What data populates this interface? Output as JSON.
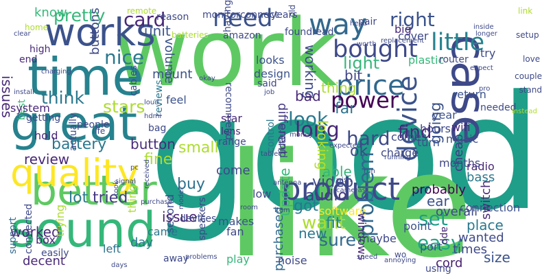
{
  "title": "",
  "words": [
    {
      "text": "good",
      "color": "#1f9e89"
    },
    {
      "text": "work",
      "color": "#5ec962"
    },
    {
      "text": "like",
      "color": "#5ec962"
    },
    {
      "text": "time",
      "color": "#26828e"
    },
    {
      "text": "works",
      "color": "#3b528b"
    },
    {
      "text": "great",
      "color": "#26828e"
    },
    {
      "text": "sound",
      "color": "#35b779"
    },
    {
      "text": "better",
      "color": "#5ec962"
    },
    {
      "text": "quality",
      "color": "#fde725"
    },
    {
      "text": "product",
      "color": "#3e4989"
    },
    {
      "text": "case",
      "color": "#3e4989"
    },
    {
      "text": "device",
      "color": "#3b528b"
    },
    {
      "text": "way",
      "color": "#31688e"
    },
    {
      "text": "need",
      "color": "#3b528b"
    },
    {
      "text": "little",
      "color": "#26828e"
    },
    {
      "text": "right",
      "color": "#3b528b"
    },
    {
      "text": "bought",
      "color": "#3e4989"
    },
    {
      "text": "price",
      "color": "#31688e"
    },
    {
      "text": "power",
      "color": "#440154"
    },
    {
      "text": "pretty",
      "color": "#35b779"
    },
    {
      "text": "card",
      "color": "#482878"
    },
    {
      "text": "unit",
      "color": "#3b528b"
    },
    {
      "text": "nice",
      "color": "#2a788e"
    },
    {
      "text": "think",
      "color": "#2a788e"
    },
    {
      "text": "stars",
      "color": "#addc30"
    },
    {
      "text": "battery",
      "color": "#2a788e"
    },
    {
      "text": "button",
      "color": "#472d7b"
    },
    {
      "text": "fine",
      "color": "#addc30"
    },
    {
      "text": "review",
      "color": "#482878"
    },
    {
      "text": "tried",
      "color": "#443983"
    },
    {
      "text": "lot",
      "color": "#2a788e"
    },
    {
      "text": "buy",
      "color": "#2c728e"
    },
    {
      "text": "issue",
      "color": "#481f70"
    },
    {
      "text": "worked",
      "color": "#482878"
    },
    {
      "text": "want",
      "color": "#addc30"
    },
    {
      "text": "update",
      "color": "#35b779"
    },
    {
      "text": "sure",
      "color": "#31688e"
    },
    {
      "text": "audio",
      "color": "#443983"
    },
    {
      "text": "video",
      "color": "#3e4989"
    },
    {
      "text": "got",
      "color": "#2a788e"
    },
    {
      "text": "new",
      "color": "#2a788e"
    },
    {
      "text": "fit",
      "color": "#26828e"
    },
    {
      "text": "problem",
      "color": "#31688e"
    },
    {
      "text": "easy",
      "color": "#22a884"
    },
    {
      "text": "set",
      "color": "#1f9e89"
    },
    {
      "text": "ear",
      "color": "#3b528b"
    },
    {
      "text": "hard",
      "color": "#3e4989"
    },
    {
      "text": "find",
      "color": "#482878"
    },
    {
      "text": "ok",
      "color": "#3e4989"
    },
    {
      "text": "look",
      "color": "#2a788e"
    },
    {
      "text": "long",
      "color": "#482878"
    },
    {
      "text": "small",
      "color": "#addc30"
    },
    {
      "text": "light",
      "color": "#35b779"
    },
    {
      "text": "bit",
      "color": "#414487"
    },
    {
      "text": "thing",
      "color": "#addc30"
    },
    {
      "text": "working",
      "color": "#3e4989"
    },
    {
      "text": "looking",
      "color": "#b5de2b"
    },
    {
      "text": "different",
      "color": "#443983"
    },
    {
      "text": "going",
      "color": "#3b528b"
    },
    {
      "text": "bad",
      "color": "#482878"
    },
    {
      "text": "far",
      "color": "#2c728e"
    },
    {
      "text": "volume",
      "color": "#3b528b"
    },
    {
      "text": "issues",
      "color": "#482878"
    },
    {
      "text": "know",
      "color": "#35b779"
    },
    {
      "text": "cheap",
      "color": "#443983"
    },
    {
      "text": "able",
      "color": "#35b779"
    },
    {
      "text": "come",
      "color": "#3e4989"
    },
    {
      "text": "probably",
      "color": "#440154"
    },
    {
      "text": "connection",
      "color": "#3b528b"
    },
    {
      "text": "place",
      "color": "#2a788e"
    },
    {
      "text": "switch",
      "color": "#482878"
    },
    {
      "text": "size",
      "color": "#3b528b"
    },
    {
      "text": "cord",
      "color": "#481f70"
    },
    {
      "text": "wanted",
      "color": "#3e4989"
    },
    {
      "text": "times",
      "color": "#3e4989"
    },
    {
      "text": "app",
      "color": "#482878"
    },
    {
      "text": "port",
      "color": "#3b528b"
    },
    {
      "text": "overall",
      "color": "#3e4989"
    },
    {
      "text": "point",
      "color": "#3b528b"
    },
    {
      "text": "maybe",
      "color": "#3e4989"
    },
    {
      "text": "purchased",
      "color": "#31688e"
    },
    {
      "text": "makes",
      "color": "#3b528b"
    },
    {
      "text": "fan",
      "color": "#3e4989"
    },
    {
      "text": "noise",
      "color": "#3e4989"
    },
    {
      "text": "play",
      "color": "#35b779"
    },
    {
      "text": "second",
      "color": "#3e4989"
    },
    {
      "text": "day",
      "color": "#2a788e"
    },
    {
      "text": "left",
      "color": "#2c728e"
    },
    {
      "text": "away",
      "color": "#3e4989"
    },
    {
      "text": "speakers",
      "color": "#3e4989"
    },
    {
      "text": "came",
      "color": "#2a788e"
    },
    {
      "text": "devices",
      "color": "#3e4989"
    },
    {
      "text": "decent",
      "color": "#482878"
    },
    {
      "text": "box",
      "color": "#482878"
    },
    {
      "text": "support",
      "color": "#31688e"
    },
    {
      "text": "connected",
      "color": "#3e4989"
    },
    {
      "text": "easily",
      "color": "#3e4989"
    },
    {
      "text": "trying",
      "color": "#addc30"
    },
    {
      "text": "things",
      "color": "#addc30"
    },
    {
      "text": "software",
      "color": "#fde725"
    },
    {
      "text": "windows",
      "color": "#482878"
    },
    {
      "text": "low",
      "color": "#3e4989"
    },
    {
      "text": "bass",
      "color": "#2a788e"
    },
    {
      "text": "radio",
      "color": "#482878"
    },
    {
      "text": "months",
      "color": "#3e4989"
    },
    {
      "text": "wifi",
      "color": "#482878"
    },
    {
      "text": "music",
      "color": "#3b528b"
    },
    {
      "text": "hours",
      "color": "#3e4989"
    },
    {
      "text": "turn",
      "color": "#3b528b"
    },
    {
      "text": "comes",
      "color": "#3e4989"
    },
    {
      "text": "charge",
      "color": "#3e4989"
    },
    {
      "text": "picture",
      "color": "#3e4989"
    },
    {
      "text": "control",
      "color": "#2a788e"
    },
    {
      "text": "star",
      "color": "#482878"
    },
    {
      "text": "lens",
      "color": "#482878"
    },
    {
      "text": "range",
      "color": "#3e4989"
    },
    {
      "text": "feel",
      "color": "#3b528b"
    },
    {
      "text": "mount",
      "color": "#3b528b"
    },
    {
      "text": "reviews",
      "color": "#2a788e"
    },
    {
      "text": "bag",
      "color": "#3e4989"
    },
    {
      "text": "hold",
      "color": "#482878"
    },
    {
      "text": "people",
      "color": "#3e4989"
    },
    {
      "text": "actually",
      "color": "#3e4989"
    },
    {
      "text": "best",
      "color": "#35b779"
    },
    {
      "text": "getting",
      "color": "#3e4989"
    },
    {
      "text": "high",
      "color": "#482878"
    },
    {
      "text": "end",
      "color": "#482878"
    },
    {
      "text": "home",
      "color": "#addc30"
    },
    {
      "text": "system",
      "color": "#482878"
    },
    {
      "text": "buttons",
      "color": "#3e4989"
    },
    {
      "text": "cables",
      "color": "#3e4989"
    },
    {
      "text": "year",
      "color": "#3b528b"
    },
    {
      "text": "return",
      "color": "#3b528b"
    },
    {
      "text": "needed",
      "color": "#3e4989"
    },
    {
      "text": "recommend",
      "color": "#3e4989"
    },
    {
      "text": "design",
      "color": "#3b528b"
    },
    {
      "text": "looks",
      "color": "#3b528b"
    },
    {
      "text": "said",
      "color": "#3e4989"
    },
    {
      "text": "plastic",
      "color": "#35b779"
    },
    {
      "text": "router",
      "color": "#3e4989"
    },
    {
      "text": "try",
      "color": "#3e4989"
    },
    {
      "text": "big",
      "color": "#482878"
    },
    {
      "text": "cover",
      "color": "#3e4989"
    },
    {
      "text": "amazon",
      "color": "#3e4989"
    },
    {
      "text": "monitor",
      "color": "#3e4989"
    },
    {
      "text": "having",
      "color": "#3e4989"
    },
    {
      "text": "connect",
      "color": "#3e4989"
    },
    {
      "text": "years",
      "color": "#3e4989"
    },
    {
      "text": "old",
      "color": "#3e4989"
    },
    {
      "text": "found",
      "color": "#3e4989"
    },
    {
      "text": "read",
      "color": "#3e4989"
    },
    {
      "text": "pair",
      "color": "#3e4989"
    },
    {
      "text": "reason",
      "color": "#3e4989"
    },
    {
      "text": "remote",
      "color": "#addc30"
    },
    {
      "text": "batteries",
      "color": "#addc30"
    },
    {
      "text": "link",
      "color": "#addc30"
    },
    {
      "text": "setup",
      "color": "#3e4989"
    },
    {
      "text": "love",
      "color": "#3e4989"
    },
    {
      "text": "couple",
      "color": "#3e4989"
    },
    {
      "text": "stand",
      "color": "#3e4989"
    },
    {
      "text": "instead",
      "color": "#addc30"
    },
    {
      "text": "longer",
      "color": "#3e4989"
    },
    {
      "text": "head",
      "color": "#3e4989"
    },
    {
      "text": "inside",
      "color": "#3e4989"
    },
    {
      "text": "replacement",
      "color": "#3e4989"
    },
    {
      "text": "worth",
      "color": "#3e4989"
    },
    {
      "text": "expect",
      "color": "#3e4989"
    },
    {
      "text": "pro",
      "color": "#3e4989"
    },
    {
      "text": "okay",
      "color": "#3e4989"
    },
    {
      "text": "job",
      "color": "#3e4989"
    },
    {
      "text": "loud",
      "color": "#3e4989"
    },
    {
      "text": "charging",
      "color": "#3e4989"
    },
    {
      "text": "clear",
      "color": "#3e4989"
    },
    {
      "text": "install",
      "color": "#3e4989"
    },
    {
      "text": "life",
      "color": "#3e4989"
    },
    {
      "text": "pc",
      "color": "#3e4989"
    },
    {
      "text": "took",
      "color": "#3e4989"
    },
    {
      "text": "signal",
      "color": "#3e4989"
    },
    {
      "text": "purchase",
      "color": "#3e4989"
    },
    {
      "text": "received",
      "color": "#3e4989"
    },
    {
      "text": "model",
      "color": "#3e4989"
    },
    {
      "text": "hdmi",
      "color": "#3e4989"
    },
    {
      "text": "money",
      "color": "#3e4989"
    },
    {
      "text": "expected",
      "color": "#3e4989"
    },
    {
      "text": "running",
      "color": "#3e4989"
    },
    {
      "text": "run",
      "color": "#3e4989"
    },
    {
      "text": "wish",
      "color": "#3e4989"
    },
    {
      "text": "antenna",
      "color": "#3e4989"
    },
    {
      "text": "room",
      "color": "#3e4989"
    },
    {
      "text": "cameras",
      "color": "#3e4989"
    },
    {
      "text": "item",
      "color": "#3e4989"
    },
    {
      "text": "tablet",
      "color": "#3e4989"
    },
    {
      "text": "problems",
      "color": "#3e4989"
    },
    {
      "text": "days",
      "color": "#3e4989"
    },
    {
      "text": "speed",
      "color": "#3e4989"
    },
    {
      "text": "annoying",
      "color": "#3e4989"
    },
    {
      "text": "wo",
      "color": "#3e4989"
    },
    {
      "text": "using",
      "color": "#3e4989"
    }
  ]
}
